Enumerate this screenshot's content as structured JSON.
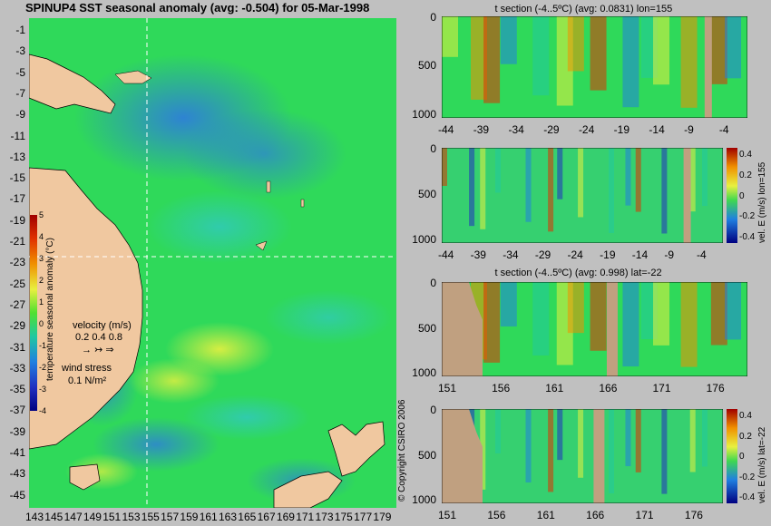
{
  "map": {
    "title": "SPINUP4 SST seasonal anomaly (avg: -0.504) for 05-Mar-1998",
    "lat_ticks": [
      "-1",
      "-3",
      "-5",
      "-7",
      "-9",
      "-11",
      "-13",
      "-15",
      "-17",
      "-19",
      "-21",
      "-23",
      "-25",
      "-27",
      "-29",
      "-31",
      "-33",
      "-35",
      "-37",
      "-39",
      "-41",
      "-43",
      "-45"
    ],
    "lon_ticks": [
      "143",
      "145",
      "147",
      "149",
      "151",
      "153",
      "155",
      "157",
      "159",
      "161",
      "163",
      "165",
      "167",
      "169",
      "171",
      "173",
      "175",
      "177",
      "179"
    ],
    "colorbar": {
      "label": "temperature seasonal anomaly (°C)",
      "ticks": [
        "5",
        "4",
        "3",
        "2",
        "1",
        "0",
        "-1",
        "-2",
        "-3",
        "-4"
      ]
    },
    "velocity_legend": {
      "label": "velocity (m/s)",
      "scale": "0.2 0.4 0.8"
    },
    "wind_legend": {
      "label": "wind stress",
      "value": "0.1 N/m²"
    },
    "marker_lon": 155,
    "marker_lat": -22,
    "copyright": "© Copyright CSIRO 2006"
  },
  "panels": [
    {
      "title": "t section (-4..5ºC) (avg: 0.0831) lon=155",
      "y_ticks": [
        "0",
        "500",
        "1000"
      ],
      "x_ticks": [
        "-44",
        "-39",
        "-34",
        "-29",
        "-24",
        "-19",
        "-14",
        "-9",
        "-4"
      ],
      "colorbar_label": "",
      "colorbar_ticks": []
    },
    {
      "title": "",
      "y_ticks": [
        "0",
        "500",
        "1000"
      ],
      "x_ticks": [
        "-44",
        "-39",
        "-34",
        "-29",
        "-24",
        "-19",
        "-14",
        "-9",
        "-4"
      ],
      "colorbar_label": "vel. E (m/s) lon=155",
      "colorbar_ticks": [
        "0.4",
        "0.2",
        "0",
        "-0.2",
        "-0.4"
      ]
    },
    {
      "title": "t section (-4..5ºC) (avg: 0.998) lat=-22",
      "y_ticks": [
        "0",
        "500",
        "1000"
      ],
      "x_ticks": [
        "151",
        "156",
        "161",
        "166",
        "171",
        "176"
      ],
      "colorbar_label": "",
      "colorbar_ticks": []
    },
    {
      "title": "",
      "y_ticks": [
        "0",
        "500",
        "1000"
      ],
      "x_ticks": [
        "151",
        "156",
        "161",
        "166",
        "171",
        "176"
      ],
      "colorbar_label": "vel. E (m/s) lat=-22",
      "colorbar_ticks": [
        "0.4",
        "0.2",
        "0",
        "-0.2",
        "-0.4"
      ]
    }
  ],
  "chart_data": [
    {
      "type": "heatmap",
      "title": "SPINUP4 SST seasonal anomaly (avg: -0.504) for 05-Mar-1998",
      "xlabel": "",
      "ylabel": "",
      "xlim": [
        143,
        180
      ],
      "ylim": [
        -45,
        0
      ],
      "color_range": [
        -4,
        5
      ],
      "colorbar_label": "temperature seasonal anomaly (°C)"
    },
    {
      "type": "heatmap",
      "title": "t section (-4..5ºC) (avg: 0.0831) lon=155",
      "x_ticks": [
        -44,
        -39,
        -34,
        -29,
        -24,
        -19,
        -14,
        -9,
        -4
      ],
      "y_ticks": [
        0,
        500,
        1000
      ],
      "color_range": [
        -4,
        5
      ]
    },
    {
      "type": "heatmap",
      "title": "",
      "colorbar_label": "vel. E (m/s) lon=155",
      "x_ticks": [
        -44,
        -39,
        -34,
        -29,
        -24,
        -19,
        -14,
        -9,
        -4
      ],
      "y_ticks": [
        0,
        500,
        1000
      ],
      "color_range": [
        -0.4,
        0.4
      ]
    },
    {
      "type": "heatmap",
      "title": "t section (-4..5ºC) (avg: 0.998) lat=-22",
      "x_ticks": [
        151,
        156,
        161,
        166,
        171,
        176
      ],
      "y_ticks": [
        0,
        500,
        1000
      ],
      "color_range": [
        -4,
        5
      ]
    },
    {
      "type": "heatmap",
      "title": "",
      "colorbar_label": "vel. E (m/s) lat=-22",
      "x_ticks": [
        151,
        156,
        161,
        166,
        171,
        176
      ],
      "y_ticks": [
        0,
        500,
        1000
      ],
      "color_range": [
        -0.4,
        0.4
      ]
    }
  ]
}
